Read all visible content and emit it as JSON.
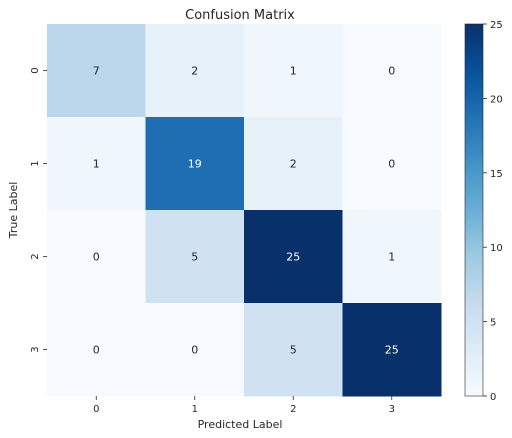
{
  "chart_data": {
    "type": "heatmap",
    "title": "Confusion Matrix",
    "xlabel": "Predicted Label",
    "ylabel": "True Label",
    "x_categories": [
      "0",
      "1",
      "2",
      "3"
    ],
    "y_categories": [
      "0",
      "1",
      "2",
      "3"
    ],
    "values": [
      [
        7,
        2,
        1,
        0
      ],
      [
        1,
        19,
        2,
        0
      ],
      [
        0,
        5,
        25,
        1
      ],
      [
        0,
        0,
        5,
        25
      ]
    ],
    "colorbar": {
      "min": 0,
      "max": 25,
      "ticks": [
        0,
        5,
        10,
        15,
        20,
        25
      ]
    },
    "colormap": "Blues",
    "colors": {
      "low": "#f7fbff",
      "high": "#08306b",
      "text_light": "#ffffff",
      "text_dark": "#262626"
    }
  }
}
